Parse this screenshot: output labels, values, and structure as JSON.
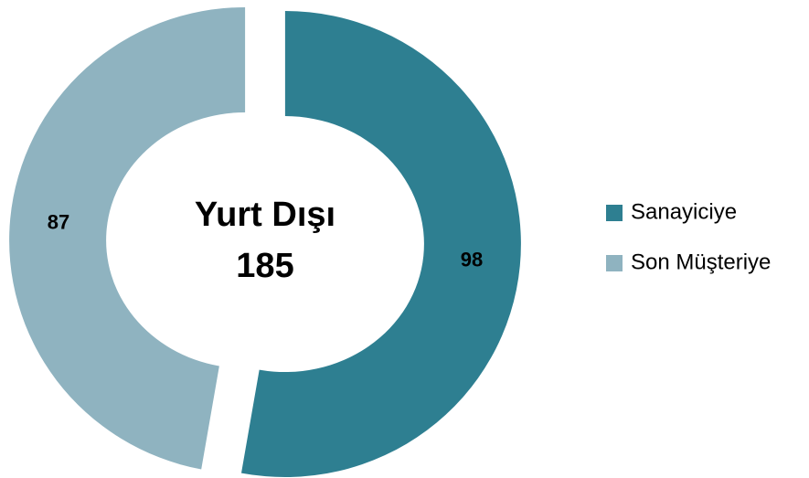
{
  "chart_data": {
    "type": "donut",
    "center_title": "Yurt Dışı",
    "center_value": 185,
    "categories": [
      "Sanayiciye",
      "Son Müşteriye"
    ],
    "values": [
      98,
      87
    ],
    "colors": [
      "#2e7f91",
      "#8fb3c0"
    ],
    "legend": "right"
  }
}
